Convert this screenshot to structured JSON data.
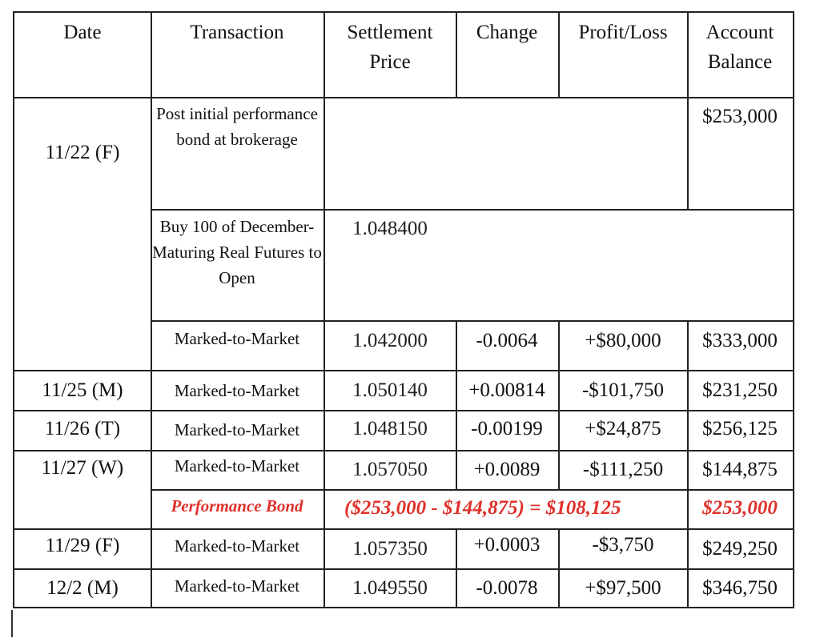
{
  "headers": {
    "date": "Date",
    "transaction": "Transaction",
    "settlement_line1": "Settlement",
    "settlement_line2": "Price",
    "change": "Change",
    "profit_loss": "Profit/Loss",
    "balance_line1": "Account",
    "balance_line2": "Balance"
  },
  "rows": [
    {
      "date": "11/22 (F)",
      "transaction": "Post initial performance bond at brokerage",
      "settlement": "",
      "change": "",
      "pl": "",
      "balance": "$253,000"
    },
    {
      "date": "",
      "transaction": "Buy 100 of December-Maturing Real Futures to Open",
      "settlement": "1.048400",
      "change": "",
      "pl": "",
      "balance": ""
    },
    {
      "date": "",
      "transaction": "Marked-to-Market",
      "settlement": "1.042000",
      "change": "-0.0064",
      "pl": "+$80,000",
      "balance": "$333,000"
    },
    {
      "date": "11/25 (M)",
      "transaction": "Marked-to-Market",
      "settlement": "1.050140",
      "change": "+0.00814",
      "pl": "-$101,750",
      "balance": "$231,250"
    },
    {
      "date": "11/26 (T)",
      "transaction": "Marked-to-Market",
      "settlement": "1.048150",
      "change": "-0.00199",
      "pl": "+$24,875",
      "balance": "$256,125"
    },
    {
      "date": "11/27 (W)",
      "transaction": "Marked-to-Market",
      "settlement": "1.057050",
      "change": "+0.0089",
      "pl": "-$111,250",
      "balance": "$144,875"
    },
    {
      "date": "",
      "transaction": "Performance Bond",
      "settlement": "($253,000 - $144,875) = $108,125",
      "change": "",
      "pl": "",
      "balance": "$253,000"
    },
    {
      "date": "11/29 (F)",
      "transaction": "Marked-to-Market",
      "settlement": "1.057350",
      "change": "+0.0003",
      "pl": "-$3,750",
      "balance": "$249,250"
    },
    {
      "date": "12/2 (M)",
      "transaction": "Marked-to-Market",
      "settlement": "1.049550",
      "change": "-0.0078",
      "pl": "+$97,500",
      "balance": "$346,750"
    }
  ],
  "colors": {
    "highlight": "#e0312b",
    "border": "#222222"
  }
}
